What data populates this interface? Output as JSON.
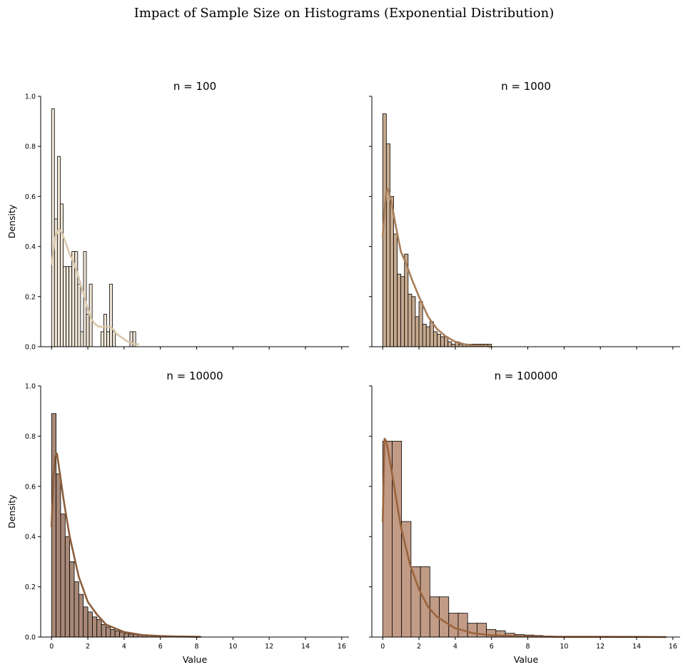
{
  "figure": {
    "title": "Impact of Sample Size on Histograms (Exponential Distribution)"
  },
  "chart_data": [
    {
      "type": "bar",
      "title": "n = 100",
      "xlabel": "",
      "ylabel": "Density",
      "xlim": [
        -0.6,
        16.4
      ],
      "ylim": [
        0,
        1.0
      ],
      "xticks": [
        0,
        2,
        4,
        6,
        8,
        10,
        12,
        14,
        16
      ],
      "yticks": [
        0.0,
        0.2,
        0.4,
        0.6,
        0.8,
        1.0
      ],
      "show_xticklabels": false,
      "show_yticklabels": true,
      "bar_color": "#efe5d6",
      "kde_color": "#d9c7ab",
      "bin_start": 0.0,
      "bin_width": 0.16,
      "densities": [
        0.95,
        0.51,
        0.76,
        0.57,
        0.32,
        0.32,
        0.32,
        0.38,
        0.38,
        0.25,
        0.06,
        0.38,
        0.13,
        0.25,
        0.0,
        0.0,
        0.0,
        0.06,
        0.13,
        0.06,
        0.25,
        0.06,
        0.0,
        0.0,
        0.0,
        0.0,
        0.0,
        0.06,
        0.06
      ],
      "kde": {
        "x": [
          0,
          0.2,
          0.4,
          0.6,
          0.8,
          1.0,
          1.2,
          1.4,
          1.6,
          1.8,
          2.0,
          2.2,
          2.4,
          2.6,
          2.8,
          3.0,
          3.2,
          3.4,
          3.6,
          3.8,
          4.0,
          4.2,
          4.4,
          4.6,
          4.8
        ],
        "y": [
          0.33,
          0.44,
          0.47,
          0.45,
          0.41,
          0.37,
          0.34,
          0.3,
          0.25,
          0.2,
          0.15,
          0.11,
          0.09,
          0.08,
          0.08,
          0.08,
          0.08,
          0.07,
          0.05,
          0.04,
          0.03,
          0.02,
          0.015,
          0.01,
          0.01
        ]
      }
    },
    {
      "type": "bar",
      "title": "n = 1000",
      "xlabel": "",
      "ylabel": "",
      "xlim": [
        -0.6,
        16.4
      ],
      "ylim": [
        0,
        1.0
      ],
      "xticks": [
        0,
        2,
        4,
        6,
        8,
        10,
        12,
        14,
        16
      ],
      "yticks": [
        0.0,
        0.2,
        0.4,
        0.6,
        0.8,
        1.0
      ],
      "show_xticklabels": false,
      "show_yticklabels": false,
      "bar_color": "#c7aa8f",
      "kde_color": "#a77e5a",
      "bin_start": 0.0,
      "bin_width": 0.2,
      "densities": [
        0.93,
        0.81,
        0.6,
        0.45,
        0.29,
        0.28,
        0.37,
        0.21,
        0.2,
        0.12,
        0.18,
        0.09,
        0.08,
        0.1,
        0.06,
        0.05,
        0.04,
        0.04,
        0.02,
        0.01,
        0.02,
        0.01,
        0.01,
        0.01,
        0.01,
        0.01,
        0.01,
        0.01,
        0.01,
        0.01
      ],
      "kde": {
        "x": [
          0,
          0.1,
          0.2,
          0.3,
          0.5,
          0.7,
          1.0,
          1.3,
          1.6,
          2.0,
          2.5,
          3.0,
          3.5,
          4.0,
          4.5,
          5.0,
          5.5,
          6.0
        ],
        "y": [
          0.44,
          0.55,
          0.62,
          0.63,
          0.57,
          0.49,
          0.38,
          0.33,
          0.27,
          0.2,
          0.12,
          0.07,
          0.04,
          0.02,
          0.01,
          0.005,
          0.005,
          0.0
        ]
      }
    },
    {
      "type": "bar",
      "title": "n = 10000",
      "xlabel": "Value",
      "ylabel": "Density",
      "xlim": [
        -0.6,
        16.4
      ],
      "ylim": [
        0,
        1.0
      ],
      "xticks": [
        0,
        2,
        4,
        6,
        8,
        10,
        12,
        14,
        16
      ],
      "yticks": [
        0.0,
        0.2,
        0.4,
        0.6,
        0.8,
        1.0
      ],
      "show_xticklabels": true,
      "show_yticklabels": true,
      "bar_color": "#a88877",
      "kde_color": "#8b5e3c",
      "bin_start": 0.0,
      "bin_width": 0.25,
      "densities": [
        0.89,
        0.65,
        0.49,
        0.4,
        0.3,
        0.22,
        0.17,
        0.12,
        0.1,
        0.08,
        0.07,
        0.05,
        0.04,
        0.03,
        0.025,
        0.02,
        0.015,
        0.012,
        0.01,
        0.008,
        0.006,
        0.005,
        0.004,
        0.003,
        0.003,
        0.002,
        0.002,
        0.0015,
        0.001,
        0.001,
        0.001,
        0.001,
        0.001
      ],
      "kde": {
        "x": [
          0,
          0.1,
          0.2,
          0.3,
          0.5,
          0.7,
          1.0,
          1.5,
          2.0,
          2.5,
          3.0,
          4.0,
          5.0,
          6.0,
          7.0,
          8.2
        ],
        "y": [
          0.44,
          0.63,
          0.72,
          0.73,
          0.63,
          0.53,
          0.4,
          0.24,
          0.14,
          0.09,
          0.05,
          0.02,
          0.008,
          0.004,
          0.002,
          0.001
        ]
      }
    },
    {
      "type": "bar",
      "title": "n = 100000",
      "xlabel": "Value",
      "ylabel": "",
      "xlim": [
        -0.6,
        16.4
      ],
      "ylim": [
        0,
        1.0
      ],
      "xticks": [
        0,
        2,
        4,
        6,
        8,
        10,
        12,
        14,
        16
      ],
      "yticks": [
        0.0,
        0.2,
        0.4,
        0.6,
        0.8,
        1.0
      ],
      "show_xticklabels": true,
      "show_yticklabels": false,
      "bar_color": "#c29b86",
      "kde_color": "#9a653e",
      "bin_start": 0.0,
      "bin_width": 0.52,
      "densities": [
        0.78,
        0.78,
        0.46,
        0.28,
        0.28,
        0.16,
        0.16,
        0.095,
        0.095,
        0.055,
        0.055,
        0.03,
        0.025,
        0.015,
        0.01,
        0.008,
        0.006,
        0.004,
        0.003,
        0.002,
        0.002,
        0.001,
        0.001,
        0.001,
        0.001,
        0.001,
        0.001,
        0.001,
        0.001,
        0.001
      ],
      "kde": {
        "x": [
          0,
          0.1,
          0.2,
          0.4,
          0.7,
          1.0,
          1.5,
          2.0,
          2.5,
          3.0,
          4.0,
          5.0,
          6.0,
          8.0,
          10.0,
          12.0,
          15.6
        ],
        "y": [
          0.46,
          0.79,
          0.78,
          0.7,
          0.57,
          0.44,
          0.29,
          0.19,
          0.12,
          0.08,
          0.035,
          0.015,
          0.007,
          0.002,
          0.001,
          0.001,
          0.0
        ]
      }
    }
  ]
}
